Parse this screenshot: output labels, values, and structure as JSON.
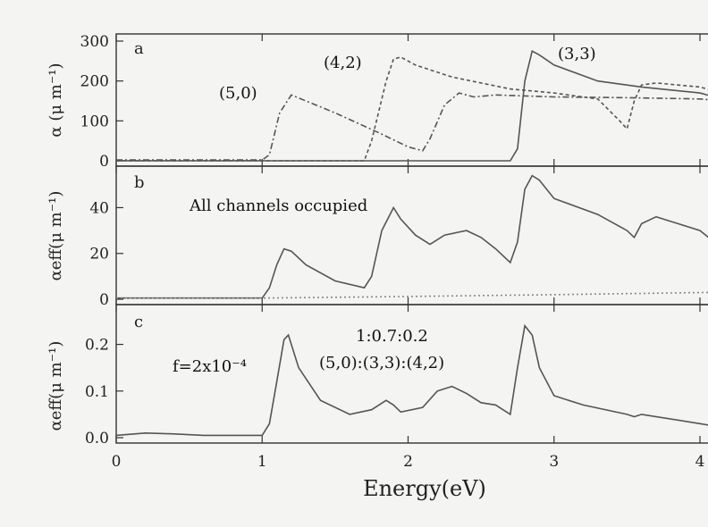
{
  "chart_data": [
    {
      "type": "line",
      "panel": "a",
      "ylabel": "α (μ m⁻¹)",
      "xlim": [
        0,
        4.3
      ],
      "ylim": [
        0,
        300
      ],
      "yticks": [
        "0",
        "100",
        "200",
        "300"
      ],
      "annotations": [
        "(5,0)",
        "(4,2)",
        "(3,3)"
      ],
      "series": [
        {
          "name": "(5,0)",
          "style": "dashdot",
          "x": [
            0,
            0.5,
            1.0,
            1.05,
            1.12,
            1.2,
            1.3,
            1.5,
            1.8,
            2.0,
            2.1,
            2.15,
            2.25,
            2.35,
            2.45,
            2.6,
            3.0,
            3.5,
            4.0,
            4.3
          ],
          "y": [
            2,
            2,
            2,
            15,
            120,
            165,
            150,
            120,
            70,
            35,
            25,
            55,
            140,
            170,
            160,
            165,
            160,
            158,
            155,
            152
          ]
        },
        {
          "name": "(4,2)",
          "style": "dashed",
          "x": [
            0,
            1.5,
            1.7,
            1.75,
            1.85,
            1.9,
            1.95,
            2.05,
            2.3,
            2.7,
            3.0,
            3.3,
            3.45,
            3.5,
            3.55,
            3.6,
            3.7,
            4.0,
            4.3
          ],
          "y": [
            0,
            0,
            0,
            50,
            200,
            255,
            260,
            240,
            210,
            180,
            170,
            155,
            100,
            80,
            150,
            190,
            195,
            185,
            175
          ]
        },
        {
          "name": "(3,3)",
          "style": "solid",
          "x": [
            0,
            2.5,
            2.7,
            2.75,
            2.8,
            2.85,
            2.9,
            3.0,
            3.3,
            3.6,
            4.0,
            4.3
          ],
          "y": [
            0,
            0,
            0,
            30,
            200,
            275,
            265,
            240,
            200,
            185,
            170,
            160
          ]
        }
      ]
    },
    {
      "type": "line",
      "panel": "b",
      "ylabel": "αeff(μ m⁻¹)",
      "xlim": [
        0,
        4.3
      ],
      "ylim": [
        0,
        55
      ],
      "yticks": [
        "0",
        "20",
        "40"
      ],
      "annotations": [
        "All channels occupied"
      ],
      "series": [
        {
          "name": "",
          "style": "solid",
          "x": [
            0,
            0.5,
            1.0,
            1.05,
            1.1,
            1.15,
            1.2,
            1.3,
            1.5,
            1.7,
            1.75,
            1.82,
            1.9,
            1.95,
            2.05,
            2.15,
            2.25,
            2.4,
            2.5,
            2.6,
            2.7,
            2.75,
            2.8,
            2.85,
            2.9,
            3.0,
            3.3,
            3.5,
            3.55,
            3.6,
            3.7,
            4.0,
            4.3
          ],
          "y": [
            0.5,
            0.5,
            0.5,
            5,
            15,
            22,
            21,
            15,
            8,
            5,
            10,
            30,
            40,
            35,
            28,
            24,
            28,
            30,
            27,
            22,
            16,
            25,
            48,
            54,
            52,
            44,
            37,
            30,
            27,
            33,
            36,
            30,
            25
          ]
        },
        {
          "name": "",
          "style": "dotted",
          "x": [
            0,
            1.0,
            2.0,
            3.0,
            4.3
          ],
          "y": [
            0.5,
            0.5,
            1.2,
            2.0,
            3.0
          ]
        }
      ]
    },
    {
      "type": "line",
      "panel": "c",
      "ylabel": "αeff(μ m⁻¹)",
      "xlim": [
        0,
        4.3
      ],
      "ylim": [
        0,
        0.27
      ],
      "yticks": [
        "0.0",
        "0.1",
        "0.2"
      ],
      "annotations": [
        "f=2x10⁻⁴",
        "1:0.7:0.2",
        "(5,0):(3,3):(4,2)"
      ],
      "series": [
        {
          "name": "",
          "style": "solid",
          "x": [
            0,
            0.2,
            0.4,
            0.6,
            1.0,
            1.05,
            1.1,
            1.15,
            1.18,
            1.25,
            1.4,
            1.6,
            1.75,
            1.85,
            1.9,
            1.95,
            2.1,
            2.2,
            2.3,
            2.4,
            2.5,
            2.6,
            2.7,
            2.75,
            2.8,
            2.85,
            2.9,
            3.0,
            3.2,
            3.5,
            3.55,
            3.6,
            4.0,
            4.3
          ],
          "y": [
            0.005,
            0.01,
            0.008,
            0.005,
            0.005,
            0.03,
            0.12,
            0.21,
            0.22,
            0.15,
            0.08,
            0.05,
            0.06,
            0.08,
            0.07,
            0.055,
            0.065,
            0.1,
            0.11,
            0.095,
            0.075,
            0.07,
            0.05,
            0.15,
            0.24,
            0.22,
            0.15,
            0.09,
            0.07,
            0.05,
            0.045,
            0.05,
            0.03,
            0.025
          ]
        }
      ]
    }
  ],
  "x_axis": {
    "label": "Energy(eV)",
    "ticks": [
      "0",
      "1",
      "2",
      "3",
      "4"
    ]
  },
  "panel_tags": [
    "a",
    "b",
    "c"
  ]
}
